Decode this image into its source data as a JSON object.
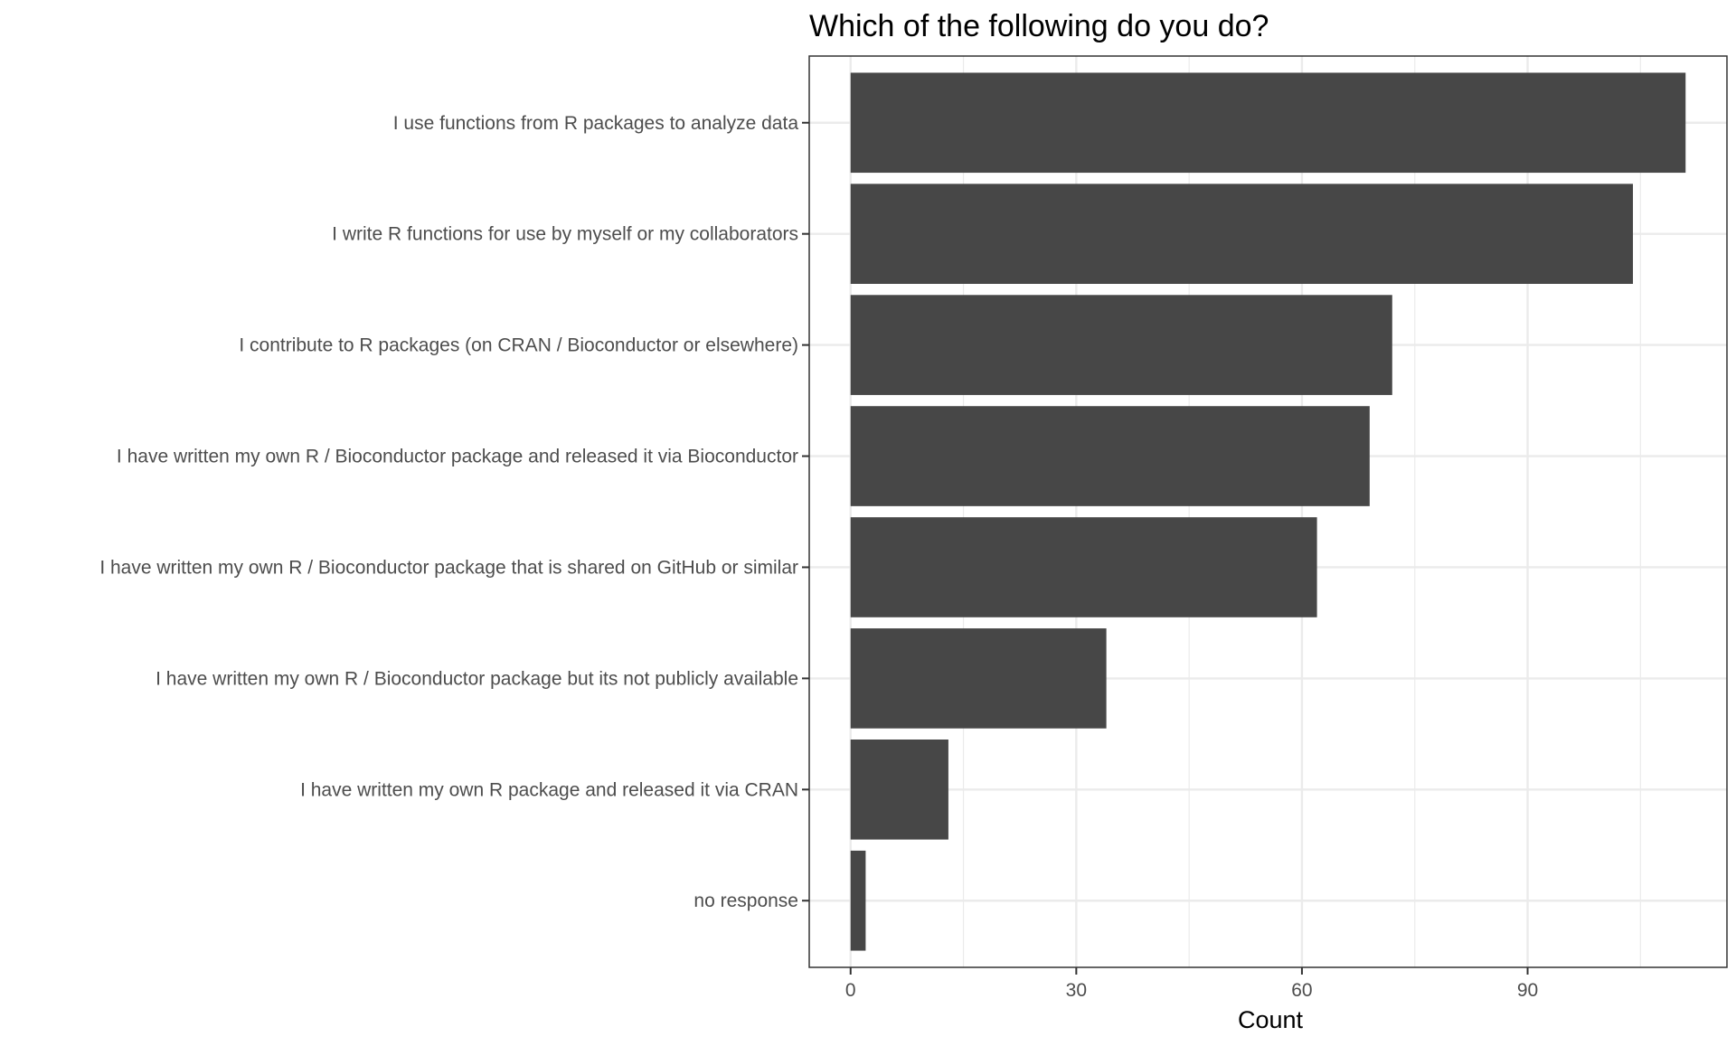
{
  "chart_data": {
    "type": "bar",
    "orientation": "horizontal",
    "title": "Which of the following do you do?",
    "xlabel": "Count",
    "ylabel": "",
    "categories": [
      "I use functions from R packages to analyze data",
      "I write R functions for use by myself or my collaborators",
      "I contribute to R packages (on CRAN / Bioconductor or elsewhere)",
      "I have written my own R / Bioconductor package and released it via Bioconductor",
      "I have written my own R / Bioconductor package that is shared on GitHub or similar",
      "I have written my own R / Bioconductor package but its not publicly available",
      "I have written my own R package and released it via CRAN",
      "no response"
    ],
    "values": [
      111,
      104,
      72,
      69,
      62,
      34,
      13,
      2
    ],
    "xlim": [
      -5.5,
      116.5
    ],
    "xticks": [
      0,
      30,
      60,
      90
    ],
    "xtick_labels": [
      "0",
      "30",
      "60",
      "90"
    ],
    "grid": true,
    "bar_color": "#474747",
    "grid_color": "#ebebeb",
    "panel_border_color": "#333333"
  }
}
